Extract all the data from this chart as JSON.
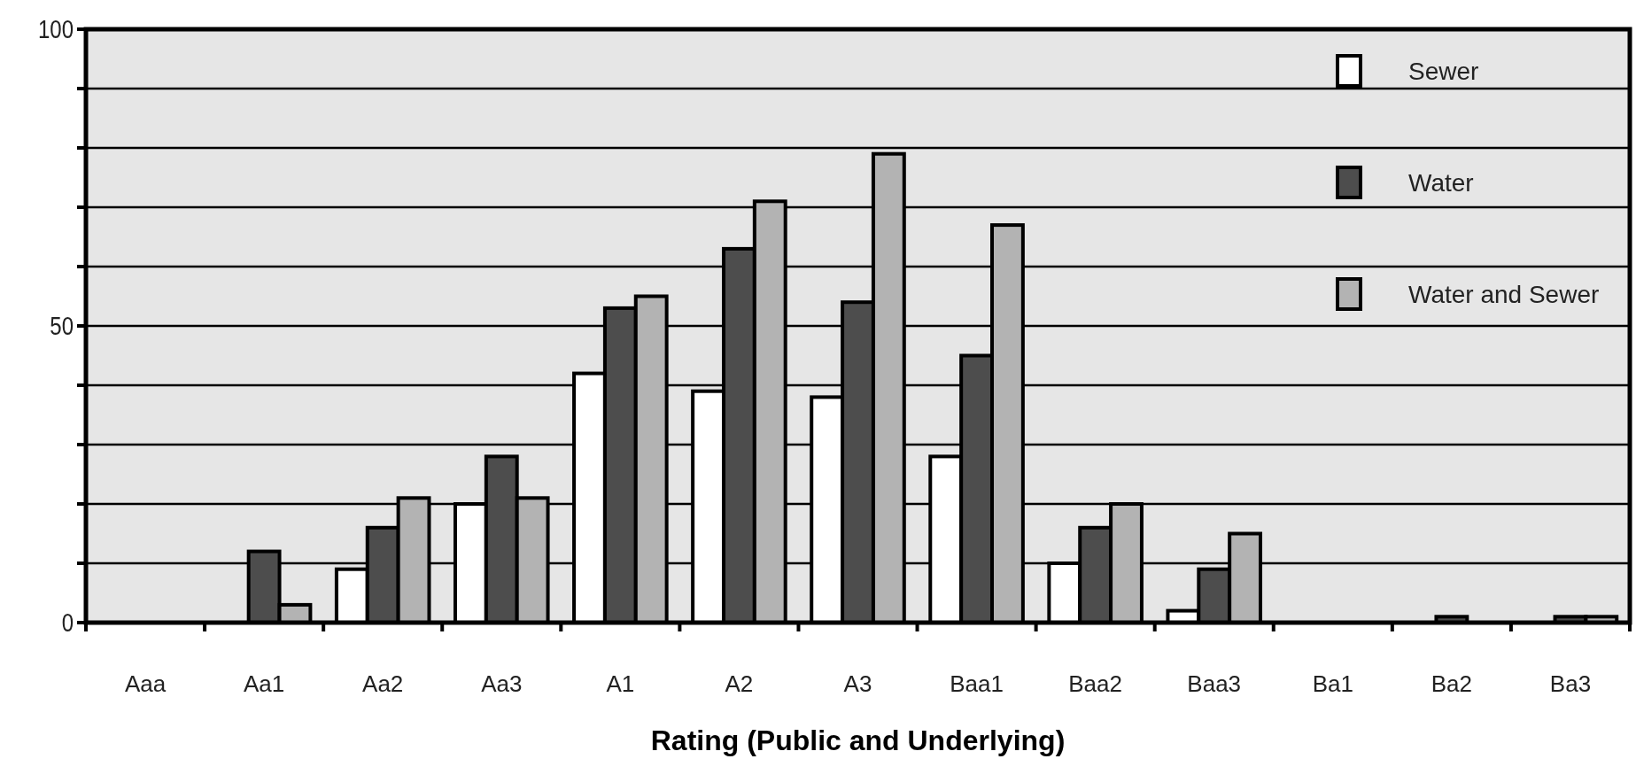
{
  "chart_data": {
    "type": "bar",
    "xlabel": "Rating (Public and Underlying)",
    "categories": [
      "Aaa",
      "Aa1",
      "Aa2",
      "Aa3",
      "A1",
      "A2",
      "A3",
      "Baa1",
      "Baa2",
      "Baa3",
      "Ba1",
      "Ba2",
      "Ba3"
    ],
    "series": [
      {
        "name": "Sewer",
        "color": "#ffffff",
        "values": [
          0,
          0,
          9,
          20,
          42,
          39,
          38,
          28,
          10,
          2,
          0,
          0,
          0
        ]
      },
      {
        "name": "Water",
        "color": "#4d4d4d",
        "values": [
          0,
          12,
          16,
          28,
          53,
          63,
          54,
          45,
          16,
          9,
          0,
          1,
          1
        ]
      },
      {
        "name": "Water and Sewer",
        "color": "#b3b3b3",
        "values": [
          0,
          3,
          21,
          21,
          55,
          71,
          79,
          67,
          20,
          15,
          0,
          0,
          1
        ]
      }
    ],
    "ylim": [
      0,
      100
    ],
    "yticks": [
      0,
      {
        "value": 10,
        "label": null
      },
      {
        "value": 20,
        "label": null
      },
      {
        "value": 30,
        "label": null
      },
      {
        "value": 40,
        "label": null
      },
      50,
      {
        "value": 60,
        "label": null
      },
      {
        "value": 70,
        "label": null
      },
      {
        "value": 80,
        "label": null
      },
      {
        "value": 90,
        "label": null
      },
      100
    ],
    "grid": "y",
    "legend": "top right"
  }
}
